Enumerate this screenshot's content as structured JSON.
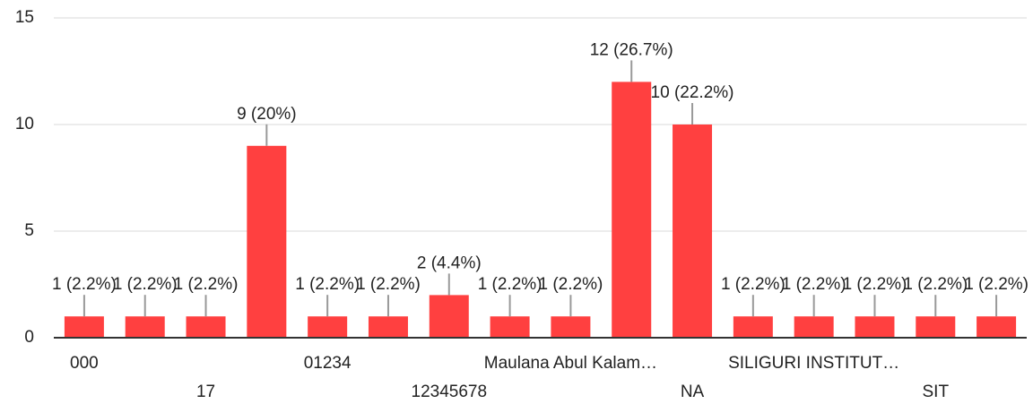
{
  "chart_data": {
    "type": "bar",
    "categories": [
      "000",
      null,
      "17",
      null,
      "01234",
      null,
      "12345678",
      null,
      "Maulana Abul Kalam…",
      null,
      "NA",
      null,
      "SILIGURI INSTITUT…",
      null,
      "SIT",
      null
    ],
    "values": [
      1,
      1,
      1,
      9,
      1,
      1,
      2,
      1,
      1,
      12,
      10,
      1,
      1,
      1,
      1,
      1
    ],
    "value_labels": [
      "1 (2.2%)",
      "1 (2.2%)",
      "1 (2.2%)",
      "9 (20%)",
      "1 (2.2%)",
      "1 (2.2%)",
      "2 (4.4%)",
      "1 (2.2%)",
      "1 (2.2%)",
      "12 (26.7%)",
      "10 (22.2%)",
      "1 (2.2%)",
      "1 (2.2%)",
      "1 (2.2%)",
      "1 (2.2%)",
      "1 (2.2%)"
    ],
    "color": "#ff4040",
    "ylim": [
      0,
      15
    ],
    "yticks": [
      0,
      5,
      10,
      15
    ],
    "grid": true
  }
}
